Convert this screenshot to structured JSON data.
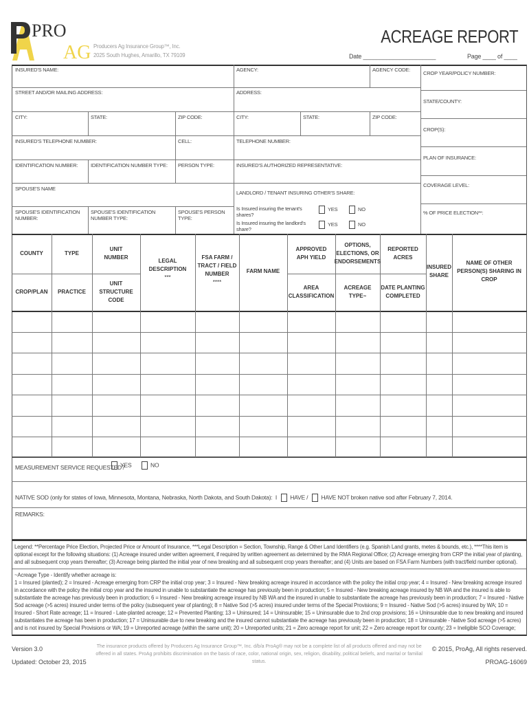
{
  "header": {
    "logo_pro": "PRO",
    "logo_ag": "AG",
    "company": "Producers Ag Insurance Group™, Inc.",
    "address": "2025 South Hughes, Amarillo, TX 79109",
    "title": "ACREAGE REPORT",
    "date_label": "Date ______________________",
    "page_label": "Page ____ of ____"
  },
  "form": {
    "insured_name": "INSURED'S NAME:",
    "agency": "AGENCY:",
    "agency_code": "AGENCY CODE:",
    "street": "STREET AND/OR MAILING ADDRESS:",
    "address": "ADDRESS:",
    "city": "CITY:",
    "state": "STATE:",
    "zip": "ZIP CODE:",
    "city2": "CITY:",
    "state2": "STATE:",
    "zip2": "ZIP CODE:",
    "telephone": "INSURED'S TELEPHONE NUMBER:",
    "cell": "CELL:",
    "telephone2": "TELEPHONE NUMBER:",
    "id_number": "IDENTIFICATION NUMBER:",
    "id_type": "IDENTIFICATION NUMBER TYPE:",
    "person_type": "PERSON TYPE:",
    "representative": "INSURED'S AUTHORIZED REPRESENTATIVE:",
    "spouse_name": "SPOUSE'S NAME",
    "landlord": "LANDLORD / TENANT INSURING OTHER'S SHARE:",
    "spouse_id": "SPOUSE'S IDENTIFICATION NUMBER:",
    "spouse_id_type": "SPOUSE'S IDENTIFICATION NUMBER TYPE:",
    "spouse_person_type": "SPOUSE'S PERSON TYPE:",
    "tenant_q": "Is Insured insuring the tenant's shares?",
    "landlord_q": "Is Insured insuring the landlord's share?",
    "yes": "YES",
    "no": "NO"
  },
  "right_col": [
    "CROP YEAR/POLICY NUMBER:",
    "STATE/COUNTY:",
    "CROP(S):",
    "PLAN OF INSURANCE:",
    "COVERAGE LEVEL:",
    "% OF PRICE ELECTION**:"
  ],
  "table": {
    "county": "COUNTY",
    "crop_plan": "CROP/PLAN",
    "type": "TYPE",
    "practice": "PRACTICE",
    "unit_number": "UNIT NUMBER",
    "unit_structure": "UNIT STRUCTURE CODE",
    "legal": "LEGAL DESCRIPTION",
    "legal_note": "***",
    "fsa": "FSA FARM / TRACT / FIELD NUMBER",
    "fsa_note": "****",
    "farm_name": "FARM NAME",
    "aph": "APPROVED APH YIELD",
    "area": "AREA CLASSIFICATION",
    "options": "OPTIONS, ELECTIONS, OR ENDORSEMENTS",
    "acreage_type": "ACREAGE TYPE~",
    "reported": "REPORTED ACRES",
    "date_planting": "DATE PLANTING COMPLETED",
    "insured_share": "INSURED SHARE",
    "other_persons": "NAME OF OTHER PERSON(S) SHARING IN CROP"
  },
  "measurement": {
    "label": "MEASUREMENT SERVICE REQUESTED?",
    "yes": "YES",
    "no": "NO"
  },
  "native_sod": {
    "label": "NATIVE SOD (only for states of Iowa, Minnesota, Montana, Nebraska, North Dakota, and South Dakota):",
    "i": "I",
    "have": "HAVE /",
    "have_not": "HAVE NOT broken native sod after February 7, 2014."
  },
  "remarks": "REMARKS:",
  "legend": "Legend:  **Percentage Price Election, Projected Price or Amount of Insurance,  ***Legal Description = Section, Township, Range & Other Land Identifiers (e.g. Spanish Land grants, metes & bounds, etc.),  ****This item is optional except for the following situations:  (1) Acreage insured under written agreement, if required by written agreement as determined by the RMA Regional Office; (2) Acreage emerging from CRP the initial year of planting, and all subsequent crop years thereafter; (3) Acreage being planted the initial year of new breaking and all subsequent crop years thereafter; and (4) Units are based on FSA Farm Numbers (with tract/field number optional).",
  "acreage_type_title": "~Acreage Type - Identify whether acreage is:",
  "acreage_type_text": "1 = Insured (planted); 2 = Insured - Acreage emerging from CRP the initial crop year; 3 = Insured - New breaking acreage insured in accordance with the policy the initial crop year; 4 = Insured - New breaking acreage insured in accordance with the policy the initial crop year and the insured in unable to substantiate the acreage has previously been in production;  5 = Insured - New breaking acreage insured by NB WA and the insured is able to substantiate the acreage has previously been in production; 6 = Insured - New breaking acreage insured by NB WA and the insured in unable to substantiate the acreage has previously been in production;  7 = Insured - Native Sod acreage (>5 acres) insured under terms of the policy (subsequent year of planting);  8 = Native Sod (>5 acres) insured under terms of the Special Provisions;  9 = Insured - Native Sod (>5 acres) insured by WA;  10 = Insured - Short Rate acreage;  11 = Insured - Late-planted acreage;  12 = Prevented Planting;  13 = Uninsured;  14 = Uninsurable;  15 = Uninsurable due to 2nd crop provisions;  16 = Uninsurable due to new breaking and insured substantiates the acreage has been in production;  17 = Uninsurable due to new breaking and the insured cannot substantiate the acreage has previously been in production;  18 = Uninsurable - Native Sod acreage (>5 acres) and is not insured by Special Provisions or WA;  19 = Unreported acreage (within the same unit);  20 = Unreported units;  21 = Zero acreage report for unit;  22 = Zero acreage report for county;  23 = Ineligible SCO Coverage;",
  "footer": {
    "version": "Version 3.0",
    "updated": "Updated: October 23, 2015",
    "disclaimer": "The insurance products offered by Producers Ag Insurance Group™, Inc. d/b/a ProAg® may not be a complete list of all products offered and may not be offered in all states. ProAg prohibits discrimination on the basis of race, color, national origin, sex, religion, disability, political beliefs, and marital or familial status.",
    "copyright": "© 2015, ProAg, All rights reserved.",
    "form_number": "PROAG-16069"
  },
  "colors": {
    "logo_yellow": "#f0d44a",
    "logo_dark": "#333333"
  }
}
